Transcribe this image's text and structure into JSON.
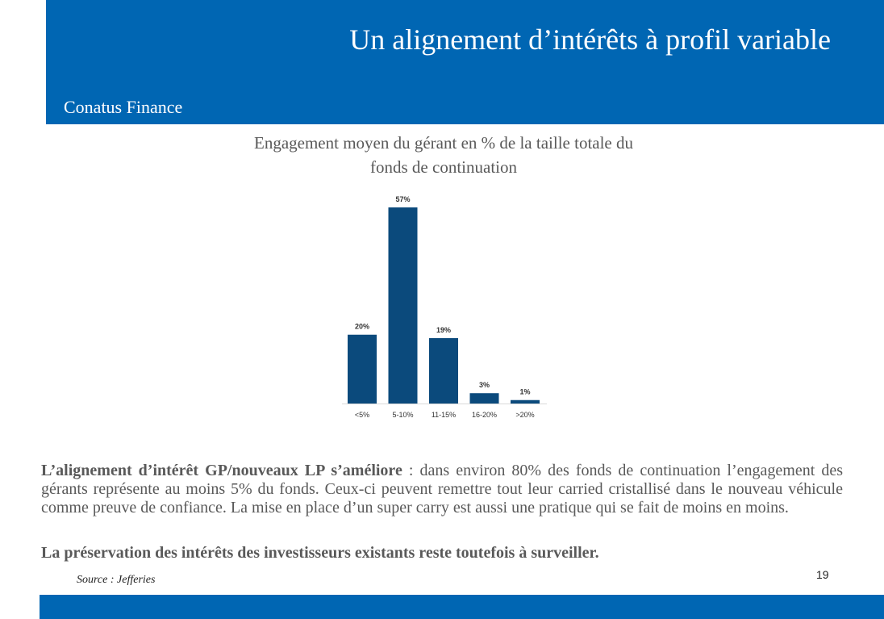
{
  "slide": {
    "title": "Un alignement d’intérêts à profil variable",
    "company": "Conatus Finance",
    "page_number": "19",
    "source": "Source : Jefferies"
  },
  "colors": {
    "brand_blue": "#0066b3",
    "bar_color": "#0b4a7c"
  },
  "body": {
    "lead": "L’alignement d’intérêt GP/nouveaux LP s’améliore",
    "text": " : dans environ 80% des fonds de continuation l’engagement des gérants représente au moins 5% du fonds. Ceux-ci peuvent remettre tout leur carried cristallisé dans le nouveau véhicule comme preuve de confiance. La mise en place d’un super carry est aussi une pratique qui se fait de moins en moins.",
    "conclusion": "La préservation des intérêts des investisseurs existants reste toutefois à surveiller."
  },
  "chart_data": {
    "type": "bar",
    "title": "Engagement moyen du gérant en % de la taille totale du fonds de continuation",
    "categories": [
      "<5%",
      "5-10%",
      "11-15%",
      "16-20%",
      ">20%"
    ],
    "values": [
      20,
      57,
      19,
      3,
      1
    ],
    "data_labels": [
      "20%",
      "57%",
      "19%",
      "3%",
      "1%"
    ],
    "unit": "%",
    "ylim": [
      0,
      57
    ],
    "grid": false,
    "legend": "none"
  }
}
